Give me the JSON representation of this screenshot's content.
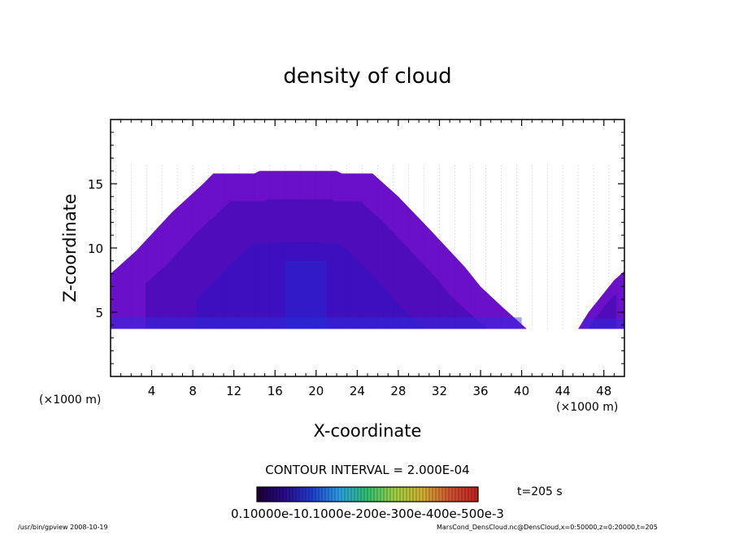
{
  "chart_data": {
    "type": "heatmap",
    "title": "density of cloud",
    "xlabel": "X-coordinate",
    "ylabel": "Z-coordinate",
    "x_unit": "(×1000 m)",
    "x_unit_right": "(×1000 m)",
    "xlim": [
      0,
      50
    ],
    "ylim": [
      0,
      20
    ],
    "x_ticks": [
      4,
      8,
      12,
      16,
      20,
      24,
      28,
      32,
      36,
      40,
      44,
      48
    ],
    "y_ticks": [
      5,
      10,
      15
    ],
    "x_tick_labels": [
      "4",
      "8",
      "12",
      "16",
      "20",
      "24",
      "28",
      "32",
      "36",
      "40",
      "44",
      "48"
    ],
    "y_tick_labels": [
      "5",
      "10",
      "15"
    ],
    "contour_interval": "CONTOUR INTERVAL = 2.000E-04",
    "time_label": "t=205 s",
    "colorbar_labels": "0.10000e-10.1000e-200e-300e-400e-500e-3",
    "colorbar_range": [
      0.0001,
      0.0006
    ],
    "colorbar_colors": [
      "#1a0030",
      "#2a0a8a",
      "#1f3fd0",
      "#2aa0e0",
      "#30c070",
      "#a0d040",
      "#d0b030",
      "#d05030",
      "#c02020"
    ],
    "cloud_base_z": 3.7,
    "cloud_main_outline": [
      [
        0,
        3.7
      ],
      [
        0,
        8.0
      ],
      [
        2.5,
        9.8
      ],
      [
        6,
        12.8
      ],
      [
        9,
        15.0
      ],
      [
        10,
        15.8
      ],
      [
        14,
        15.8
      ],
      [
        14.5,
        16.0
      ],
      [
        22,
        16.0
      ],
      [
        22.5,
        15.8
      ],
      [
        25.5,
        15.8
      ],
      [
        28,
        14.0
      ],
      [
        31,
        11.5
      ],
      [
        34.5,
        8.5
      ],
      [
        36,
        7.0
      ],
      [
        38,
        5.5
      ],
      [
        40.5,
        3.7
      ]
    ],
    "cloud_right_outline": [
      [
        45.5,
        3.7
      ],
      [
        46.5,
        5.0
      ],
      [
        49,
        7.5
      ],
      [
        50,
        8.2
      ],
      [
        50,
        3.7
      ]
    ],
    "fill_colors": {
      "outer": "#6a10c8",
      "mid": "#4a0cb8",
      "core": "#3a10c0",
      "base": "#2a30e0"
    },
    "footer_left": "/usr/bin/gpview   2008-10-19",
    "footer_right": "MarsCond_DensCloud.nc@DensCloud,x=0:50000,z=0:20000,t=205"
  }
}
